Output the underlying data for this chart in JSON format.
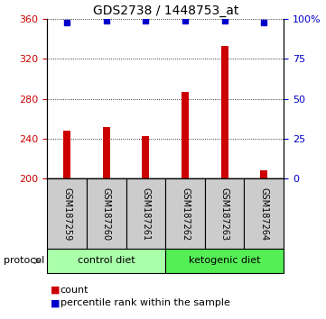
{
  "title": "GDS2738 / 1448753_at",
  "samples": [
    "GSM187259",
    "GSM187260",
    "GSM187261",
    "GSM187262",
    "GSM187263",
    "GSM187264"
  ],
  "counts": [
    248,
    252,
    243,
    287,
    333,
    208
  ],
  "percentile_ranks": [
    98,
    99,
    99,
    99,
    99,
    98
  ],
  "ylim_left": [
    200,
    360
  ],
  "ylim_right": [
    0,
    100
  ],
  "yticks_left": [
    200,
    240,
    280,
    320,
    360
  ],
  "yticks_right": [
    0,
    25,
    50,
    75,
    100
  ],
  "ytick_labels_right": [
    "0",
    "25",
    "50",
    "75",
    "100%"
  ],
  "bar_color": "#cc0000",
  "dot_color": "#0000cc",
  "groups": [
    {
      "label": "control diet",
      "start": 0,
      "end": 2,
      "color": "#aaffaa"
    },
    {
      "label": "ketogenic diet",
      "start": 3,
      "end": 5,
      "color": "#55ee55"
    }
  ],
  "protocol_label": "protocol",
  "legend_count_label": "count",
  "legend_pct_label": "percentile rank within the sample",
  "tick_label_color_left": "#cc0000",
  "tick_label_color_right": "#0000cc",
  "background_color": "#ffffff",
  "sample_area_color": "#cccccc",
  "bar_width": 0.18
}
